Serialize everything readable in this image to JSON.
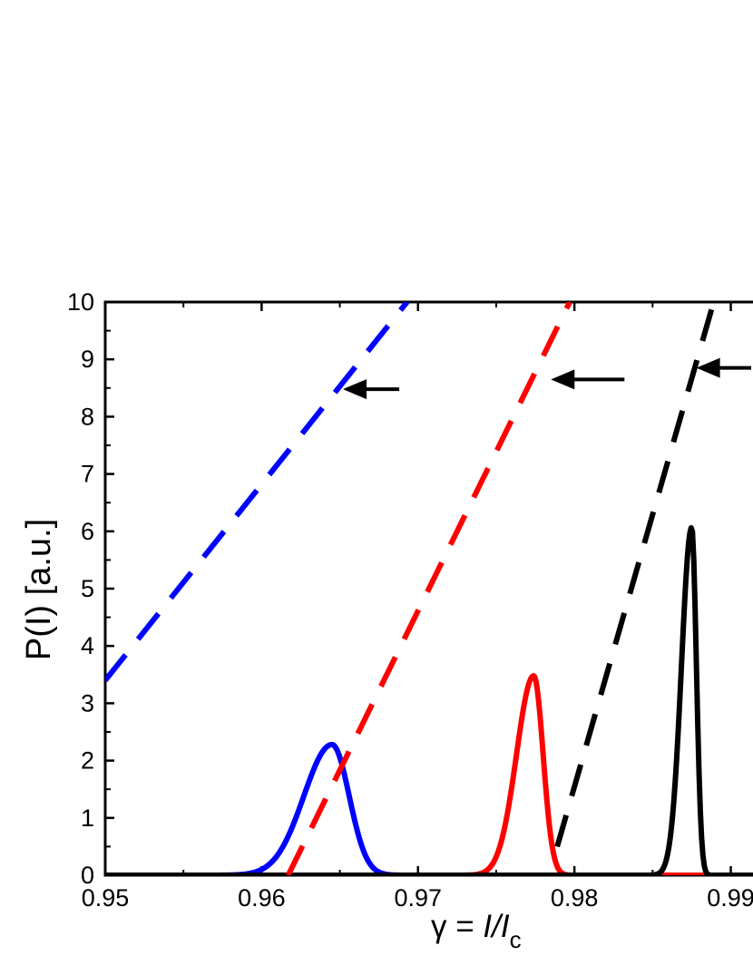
{
  "chart_data": {
    "type": "line",
    "xlabel": {
      "prefix": "γ = ",
      "main": "I/I",
      "sub": "c"
    },
    "ylabel": "P(I) [a.u.]",
    "xlim": [
      0.95,
      0.992
    ],
    "ylim": [
      0,
      10
    ],
    "x_ticks": [
      "0.95",
      "0.96",
      "0.97",
      "0.98",
      "0.99"
    ],
    "y_ticks": [
      "0",
      "1",
      "2",
      "3",
      "4",
      "5",
      "6",
      "7",
      "8",
      "9",
      "10"
    ],
    "grid": false,
    "legend": "none",
    "series": [
      {
        "style": "solid",
        "color": "#0000ff",
        "kind": "peak",
        "center": 0.9645,
        "sigma_left": 0.0018,
        "sigma_right": 0.0011,
        "amplitude": 2.28
      },
      {
        "style": "solid",
        "color": "#ff0000",
        "kind": "peak",
        "center": 0.9774,
        "sigma_left": 0.0011,
        "sigma_right": 0.0006,
        "amplitude": 3.48
      },
      {
        "style": "solid",
        "color": "#000000",
        "kind": "peak",
        "center": 0.9875,
        "sigma_left": 0.00065,
        "sigma_right": 0.0003,
        "amplitude": 6.07
      },
      {
        "style": "dashed",
        "color": "#0000ff",
        "kind": "line",
        "x": [
          0.95,
          0.9693
        ],
        "y": [
          3.4,
          10
        ]
      },
      {
        "style": "dashed",
        "color": "#ff0000",
        "kind": "line",
        "x": [
          0.9617,
          0.9797
        ],
        "y": [
          0,
          10
        ]
      },
      {
        "style": "dashed",
        "color": "#000000",
        "kind": "line",
        "x": [
          0.9789,
          0.9888
        ],
        "y": [
          0.5,
          9.9
        ]
      }
    ],
    "annotations": [
      {
        "kind": "arrow",
        "color": "#000000",
        "from": [
          0.9688,
          8.48
        ],
        "to": [
          0.9652,
          8.48
        ]
      },
      {
        "kind": "arrow",
        "color": "#000000",
        "from": [
          0.9832,
          8.65
        ],
        "to": [
          0.9785,
          8.65
        ]
      },
      {
        "kind": "arrow",
        "color": "#000000",
        "from": [
          0.992,
          8.85
        ],
        "to": [
          0.9878,
          8.85
        ]
      }
    ]
  }
}
